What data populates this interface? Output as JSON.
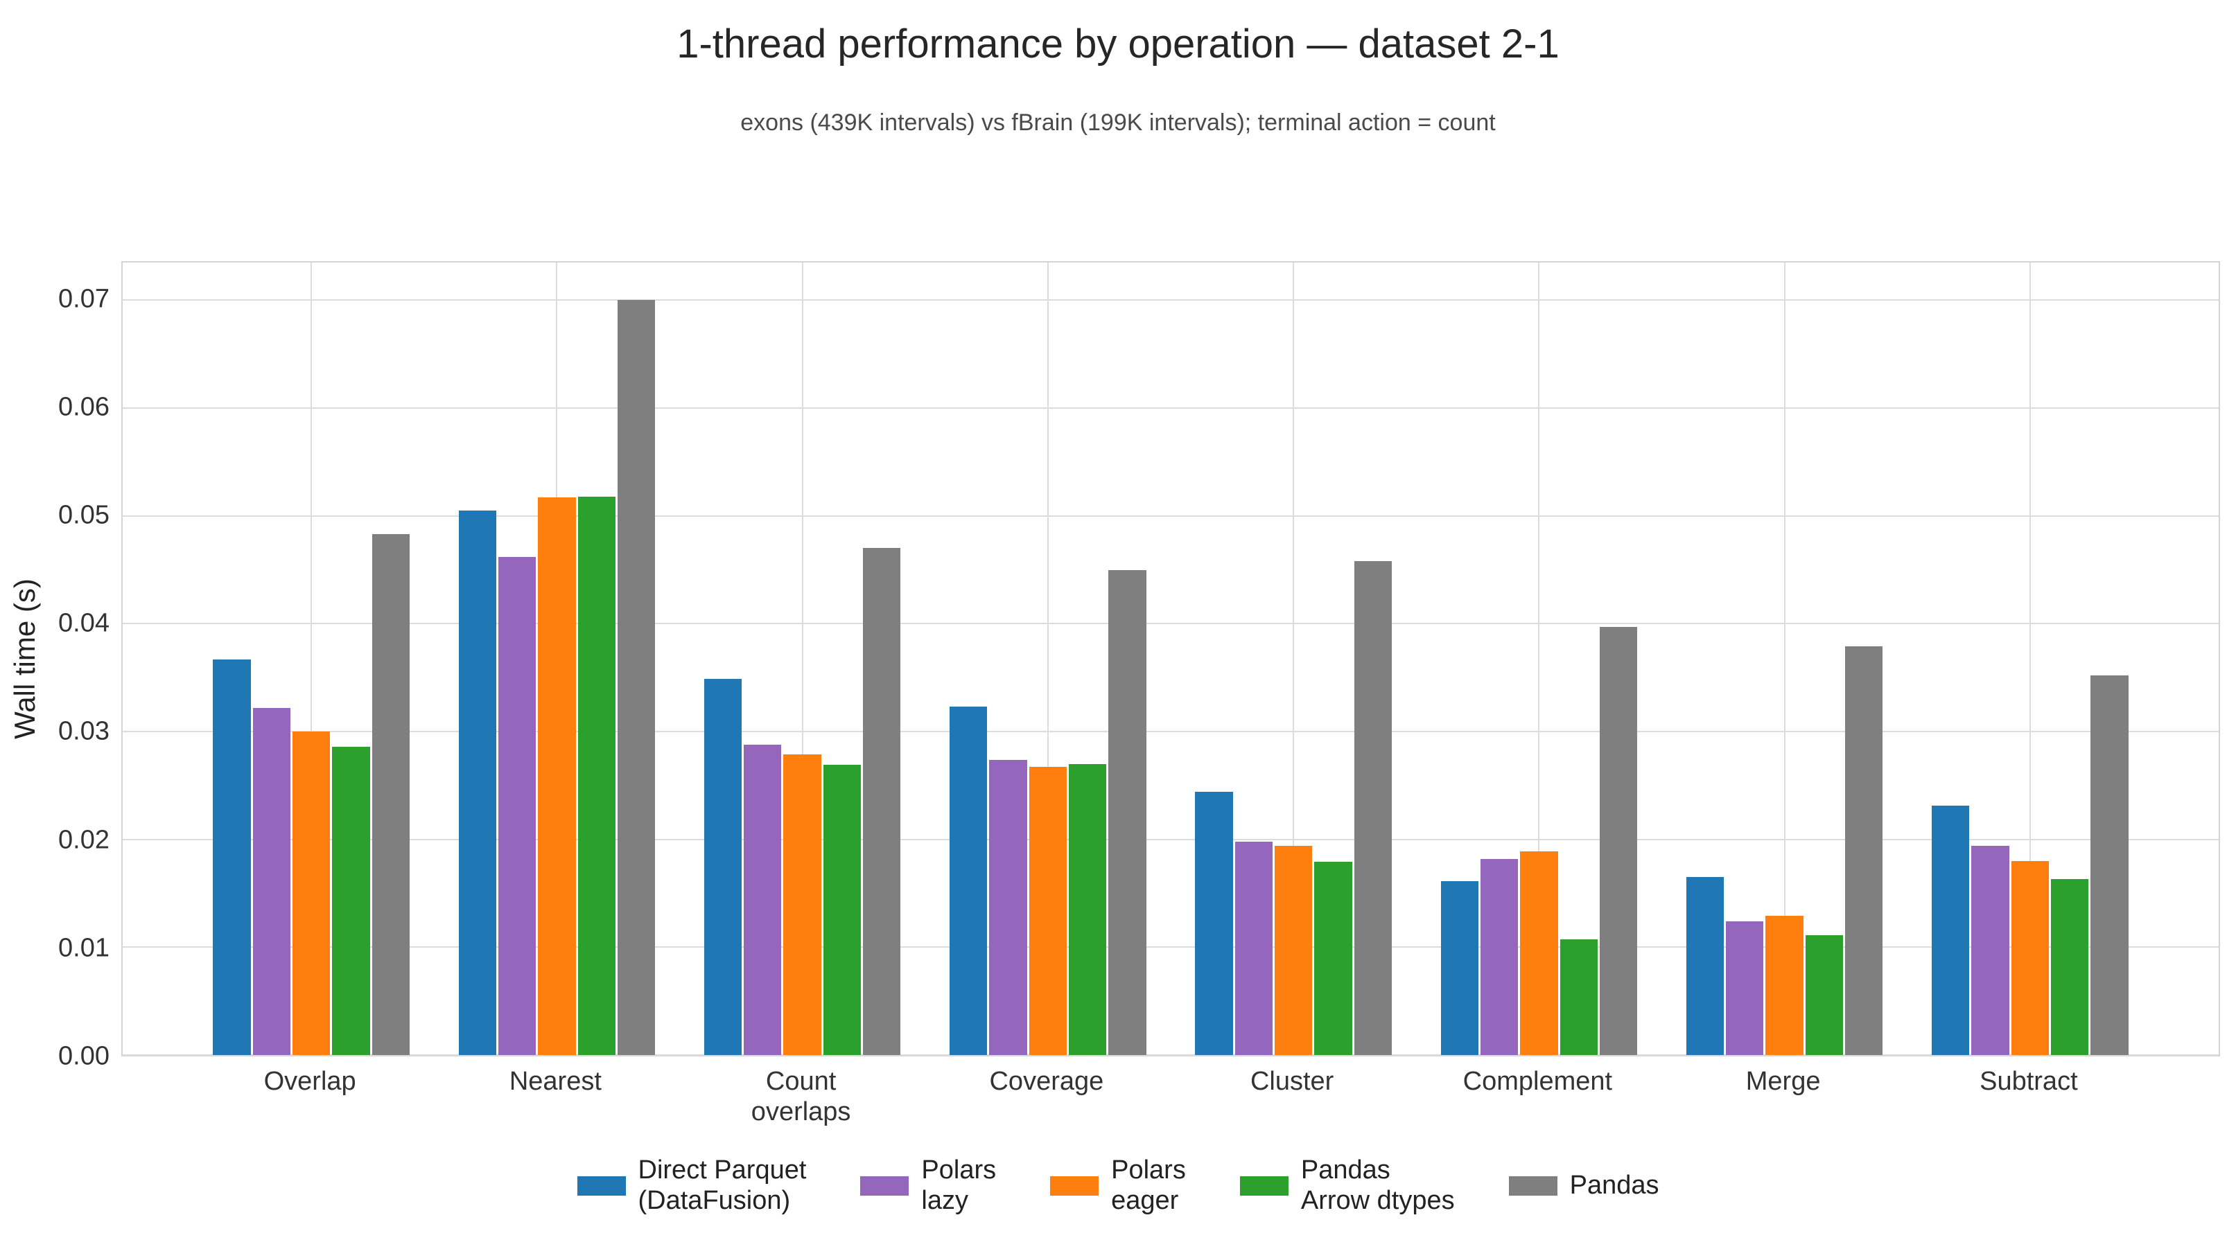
{
  "chart_data": {
    "type": "bar",
    "title": "1-thread performance by operation — dataset 2-1",
    "subtitle": "exons (439K intervals) vs fBrain (199K intervals); terminal action = count",
    "xlabel": "",
    "ylabel": "Wall time (s)",
    "ylim": [
      0,
      0.0735
    ],
    "yticks": [
      0,
      0.01,
      0.02,
      0.03,
      0.04,
      0.05,
      0.06,
      0.07
    ],
    "grid": true,
    "legend_position": "bottom",
    "categories": [
      "Overlap",
      "Nearest",
      "Count\noverlaps",
      "Coverage",
      "Cluster",
      "Complement",
      "Merge",
      "Subtract"
    ],
    "series": [
      {
        "name": "Direct Parquet\n(DataFusion)",
        "color": "#1f77b4",
        "values": [
          0.0367,
          0.0505,
          0.0349,
          0.0323,
          0.0244,
          0.0161,
          0.0165,
          0.0231
        ]
      },
      {
        "name": "Polars\nlazy",
        "color": "#9467bd",
        "values": [
          0.0322,
          0.0462,
          0.0288,
          0.0274,
          0.0198,
          0.0182,
          0.0124,
          0.0194
        ]
      },
      {
        "name": "Polars\neager",
        "color": "#ff7f0e",
        "values": [
          0.03,
          0.0517,
          0.0279,
          0.0267,
          0.0194,
          0.0189,
          0.0129,
          0.018
        ]
      },
      {
        "name": "Pandas\nArrow dtypes",
        "color": "#2ca02c",
        "values": [
          0.0286,
          0.0518,
          0.0269,
          0.027,
          0.0179,
          0.0107,
          0.0111,
          0.0163
        ]
      },
      {
        "name": "Pandas",
        "color": "#7f7f7f",
        "values": [
          0.0483,
          0.07,
          0.047,
          0.045,
          0.0458,
          0.0397,
          0.0379,
          0.0352
        ]
      }
    ]
  }
}
